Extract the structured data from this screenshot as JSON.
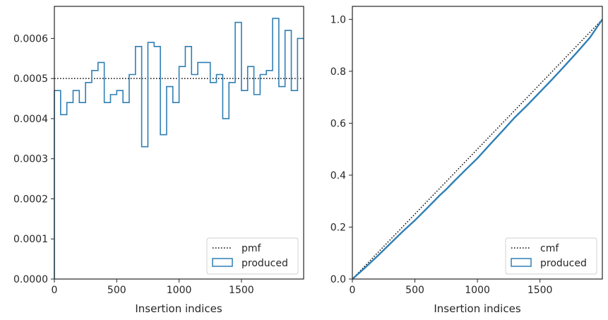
{
  "chart_data": [
    {
      "type": "step-histogram",
      "xlabel": "Insertion indices",
      "ylabel": "",
      "xlim": [
        0,
        1999
      ],
      "ylim": [
        0,
        0.00068
      ],
      "x_ticks": [
        "0",
        "500",
        "1000",
        "1500"
      ],
      "x_tick_values": [
        0,
        500,
        1000,
        1500
      ],
      "y_ticks": [
        "0.0000",
        "0.0001",
        "0.0002",
        "0.0003",
        "0.0004",
        "0.0005",
        "0.0006"
      ],
      "y_tick_values": [
        0,
        0.0001,
        0.0002,
        0.0003,
        0.0004,
        0.0005,
        0.0006
      ],
      "bin_width": 50,
      "series": [
        {
          "name": "produced",
          "style": "step",
          "color": "#2f7fb5",
          "values": [
            0.00047,
            0.00041,
            0.00044,
            0.00047,
            0.00044,
            0.00049,
            0.00052,
            0.00054,
            0.00044,
            0.00046,
            0.00047,
            0.00044,
            0.00051,
            0.00058,
            0.00033,
            0.00059,
            0.00058,
            0.00036,
            0.00048,
            0.00044,
            0.00053,
            0.00058,
            0.00051,
            0.00054,
            0.00054,
            0.00049,
            0.00051,
            0.0004,
            0.00049,
            0.00064,
            0.00047,
            0.00053,
            0.00046,
            0.00051,
            0.00052,
            0.00065,
            0.00048,
            0.00062,
            0.00047,
            0.0006
          ]
        },
        {
          "name": "pmf",
          "style": "dotted",
          "color": "#000000",
          "value": 0.0005
        }
      ],
      "legend": {
        "placement": "bottom-right",
        "entries": [
          "pmf",
          "produced"
        ]
      }
    },
    {
      "type": "line",
      "xlabel": "Insertion indices",
      "ylabel": "",
      "xlim": [
        0,
        1999
      ],
      "ylim": [
        0,
        1.05
      ],
      "x_ticks": [
        "0",
        "500",
        "1000",
        "1500"
      ],
      "x_tick_values": [
        0,
        500,
        1000,
        1500
      ],
      "y_ticks": [
        "0.0",
        "0.2",
        "0.4",
        "0.6",
        "0.8",
        "1.0"
      ],
      "y_tick_values": [
        0,
        0.2,
        0.4,
        0.6,
        0.8,
        1.0
      ],
      "series": [
        {
          "name": "produced",
          "style": "solid",
          "color": "#2f7fb5",
          "x": [
            0,
            100,
            200,
            300,
            400,
            500,
            600,
            700,
            750,
            800,
            900,
            1000,
            1100,
            1200,
            1300,
            1400,
            1500,
            1600,
            1700,
            1800,
            1900,
            1999
          ],
          "y": [
            0,
            0.043,
            0.088,
            0.135,
            0.182,
            0.226,
            0.274,
            0.323,
            0.345,
            0.37,
            0.418,
            0.465,
            0.518,
            0.57,
            0.623,
            0.67,
            0.72,
            0.77,
            0.822,
            0.875,
            0.93,
            1.0
          ]
        },
        {
          "name": "cmf",
          "style": "dotted",
          "color": "#000000",
          "x": [
            0,
            1999
          ],
          "y": [
            0,
            1.0
          ]
        }
      ],
      "legend": {
        "placement": "bottom-right",
        "entries": [
          "cmf",
          "produced"
        ]
      }
    }
  ]
}
